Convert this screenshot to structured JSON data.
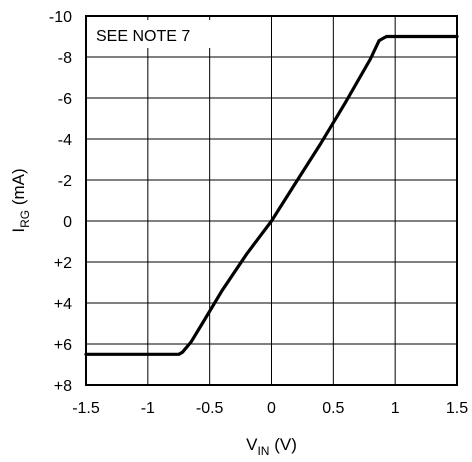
{
  "chart_data": {
    "type": "line",
    "xlabel": "V_IN (V)",
    "xlabel_main": "V",
    "xlabel_sub": "IN",
    "xlabel_unit": " (V)",
    "ylabel": "I_RG (mA)",
    "ylabel_main": "I",
    "ylabel_sub": "RG",
    "ylabel_unit": " (mA)",
    "annotation": "SEE NOTE 7",
    "xlim": [
      -1.5,
      1.5
    ],
    "ylim": [
      -10,
      8
    ],
    "y_inverted": true,
    "grid": true,
    "x_ticks": [
      -1.5,
      -1,
      -0.5,
      0,
      0.5,
      1,
      1.5
    ],
    "x_tick_labels": [
      "-1.5",
      "-1",
      "-0.5",
      "0",
      "0.5",
      "1",
      "1.5"
    ],
    "y_ticks": [
      -10,
      -8,
      -6,
      -4,
      -2,
      0,
      2,
      4,
      6,
      8
    ],
    "y_tick_labels": [
      "-10",
      "-8",
      "-6",
      "-4",
      "-2",
      "0",
      "+2",
      "+4",
      "+6",
      "+8"
    ],
    "series": [
      {
        "x": [
          -1.5,
          -0.75,
          -0.72,
          -0.65,
          -0.55,
          -0.4,
          -0.2,
          0,
          0.2,
          0.4,
          0.6,
          0.8,
          0.87,
          0.9,
          0.93,
          1.0,
          1.5
        ],
        "y": [
          6.5,
          6.5,
          6.4,
          5.9,
          4.9,
          3.4,
          1.6,
          0,
          -1.9,
          -3.8,
          -5.8,
          -7.9,
          -8.8,
          -8.9,
          -9.0,
          -9.0,
          -9.0
        ]
      }
    ]
  }
}
